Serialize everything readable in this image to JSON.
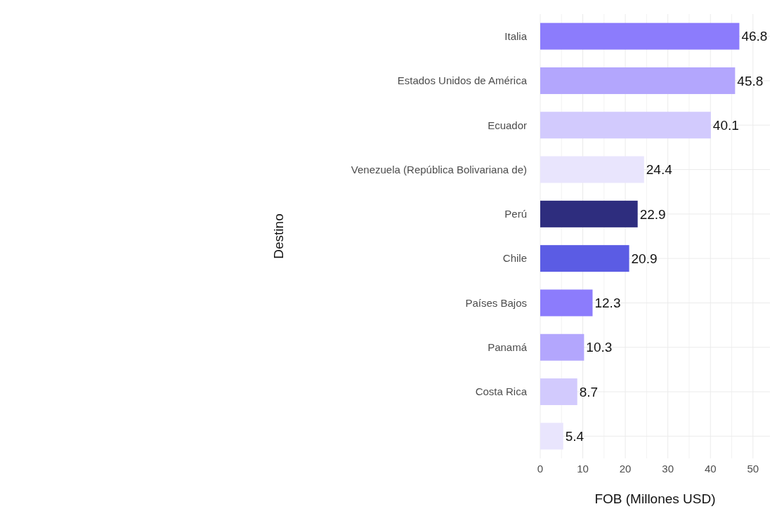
{
  "chart_data": {
    "type": "bar",
    "orientation": "horizontal",
    "xlabel": "FOB (Millones USD)",
    "ylabel": "Destino",
    "categories": [
      "Italia",
      "Estados Unidos de América",
      "Ecuador",
      "Venezuela (República Bolivariana de)",
      "Perú",
      "Chile",
      "Países Bajos",
      "Panamá",
      "Costa Rica",
      null
    ],
    "values": [
      46.8,
      45.8,
      40.1,
      24.4,
      22.9,
      20.9,
      12.3,
      10.3,
      8.7,
      5.4
    ],
    "colors": [
      "#8c7cfc",
      "#b3a6fd",
      "#d2cafd",
      "#e9e5fd",
      "#2e2d7e",
      "#5b5ce4",
      "#8c7cfc",
      "#b3a6fd",
      "#d2cafd",
      "#e9e5fd"
    ],
    "xlim": [
      0,
      54
    ],
    "xticks": [
      0,
      10,
      20,
      30,
      40,
      50
    ],
    "grid": true,
    "data_labels": true
  }
}
